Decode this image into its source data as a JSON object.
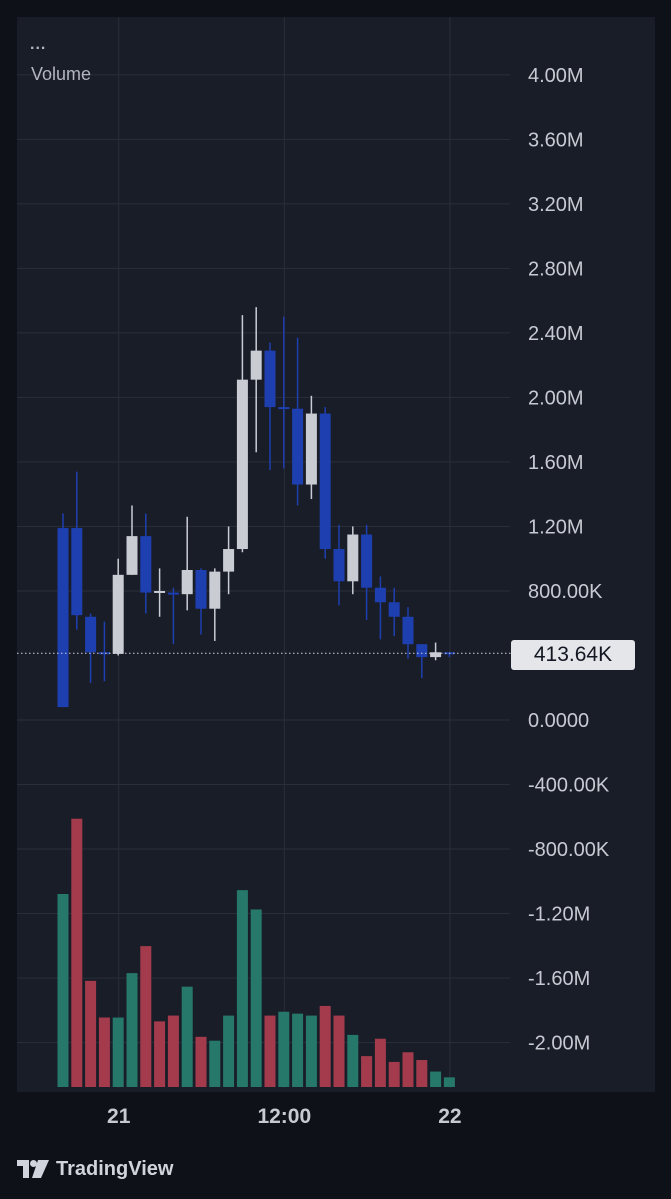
{
  "legend": {
    "menu": "...",
    "title": "Volume"
  },
  "price_label": "413.64K",
  "brand": {
    "name": "TradingView",
    "logo_icon": "tradingview-logo-icon"
  },
  "colors": {
    "up_candle": "#c9ccd3",
    "down_candle": "#1e3fb0",
    "volume_up": "#26786a",
    "volume_down": "#a33b4d",
    "grid": "#2a2e39",
    "background": "#191d28"
  },
  "chart_data": [
    {
      "type": "candlestick",
      "title": "Volume",
      "y_tick_labels": [
        "4.00M",
        "3.60M",
        "3.20M",
        "2.80M",
        "2.40M",
        "2.00M",
        "1.60M",
        "1.20M",
        "800.00K",
        "0.0000",
        "-400.00K",
        "-800.00K",
        "-1.20M",
        "-1.60M",
        "-2.00M"
      ],
      "y_ticks": [
        4000000,
        3600000,
        3200000,
        2800000,
        2400000,
        2000000,
        1600000,
        1200000,
        800000,
        0,
        -400000,
        -800000,
        -1200000,
        -1600000,
        -2000000
      ],
      "ylim": [
        -2280000,
        4190000
      ],
      "x_tick_labels": [
        "21",
        "12:00",
        "22"
      ],
      "x_tick_positions": [
        4,
        16,
        28
      ],
      "last_value": 413640,
      "candles": [
        {
          "o": 1190000,
          "c": 80000,
          "h": 1280000,
          "l": 80000
        },
        {
          "o": 1190000,
          "c": 650000,
          "h": 1540000,
          "l": 560000
        },
        {
          "o": 640000,
          "c": 420000,
          "h": 660000,
          "l": 230000
        },
        {
          "o": 420000,
          "c": 410000,
          "h": 610000,
          "l": 240000
        },
        {
          "o": 410000,
          "c": 900000,
          "h": 1000000,
          "l": 400000
        },
        {
          "o": 900000,
          "c": 1140000,
          "h": 1330000,
          "l": 900000
        },
        {
          "o": 1140000,
          "c": 790000,
          "h": 1280000,
          "l": 660000
        },
        {
          "o": 790000,
          "c": 800000,
          "h": 940000,
          "l": 640000
        },
        {
          "o": 790000,
          "c": 780000,
          "h": 820000,
          "l": 470000
        },
        {
          "o": 780000,
          "c": 930000,
          "h": 1260000,
          "l": 680000
        },
        {
          "o": 930000,
          "c": 690000,
          "h": 940000,
          "l": 530000
        },
        {
          "o": 690000,
          "c": 920000,
          "h": 940000,
          "l": 490000
        },
        {
          "o": 920000,
          "c": 1060000,
          "h": 1200000,
          "l": 780000
        },
        {
          "o": 1060000,
          "c": 2110000,
          "h": 2510000,
          "l": 1040000
        },
        {
          "o": 2110000,
          "c": 2290000,
          "h": 2560000,
          "l": 1660000
        },
        {
          "o": 2290000,
          "c": 1940000,
          "h": 2340000,
          "l": 1550000
        },
        {
          "o": 1940000,
          "c": 1930000,
          "h": 2500000,
          "l": 1560000
        },
        {
          "o": 1930000,
          "c": 1460000,
          "h": 2370000,
          "l": 1330000
        },
        {
          "o": 1460000,
          "c": 1900000,
          "h": 2010000,
          "l": 1370000
        },
        {
          "o": 1900000,
          "c": 1060000,
          "h": 1940000,
          "l": 1000000
        },
        {
          "o": 1060000,
          "c": 860000,
          "h": 1210000,
          "l": 710000
        },
        {
          "o": 860000,
          "c": 1150000,
          "h": 1200000,
          "l": 780000
        },
        {
          "o": 1150000,
          "c": 820000,
          "h": 1210000,
          "l": 620000
        },
        {
          "o": 820000,
          "c": 730000,
          "h": 890000,
          "l": 500000
        },
        {
          "o": 730000,
          "c": 640000,
          "h": 820000,
          "l": 520000
        },
        {
          "o": 640000,
          "c": 470000,
          "h": 700000,
          "l": 380000
        },
        {
          "o": 470000,
          "c": 390000,
          "h": 470000,
          "l": 260000
        },
        {
          "o": 390000,
          "c": 420000,
          "h": 480000,
          "l": 370000
        },
        {
          "o": 420000,
          "c": 410000,
          "h": 420000,
          "l": 390000
        }
      ],
      "volume": [
        {
          "v": 1.0,
          "dir": "up"
        },
        {
          "v": 1.39,
          "dir": "down"
        },
        {
          "v": 0.55,
          "dir": "down"
        },
        {
          "v": 0.36,
          "dir": "down"
        },
        {
          "v": 0.36,
          "dir": "up"
        },
        {
          "v": 0.59,
          "dir": "up"
        },
        {
          "v": 0.73,
          "dir": "down"
        },
        {
          "v": 0.34,
          "dir": "down"
        },
        {
          "v": 0.37,
          "dir": "down"
        },
        {
          "v": 0.52,
          "dir": "up"
        },
        {
          "v": 0.26,
          "dir": "down"
        },
        {
          "v": 0.24,
          "dir": "up"
        },
        {
          "v": 0.37,
          "dir": "up"
        },
        {
          "v": 1.02,
          "dir": "up"
        },
        {
          "v": 0.92,
          "dir": "up"
        },
        {
          "v": 0.37,
          "dir": "down"
        },
        {
          "v": 0.39,
          "dir": "up"
        },
        {
          "v": 0.38,
          "dir": "up"
        },
        {
          "v": 0.37,
          "dir": "up"
        },
        {
          "v": 0.42,
          "dir": "down"
        },
        {
          "v": 0.37,
          "dir": "down"
        },
        {
          "v": 0.27,
          "dir": "up"
        },
        {
          "v": 0.16,
          "dir": "down"
        },
        {
          "v": 0.25,
          "dir": "down"
        },
        {
          "v": 0.13,
          "dir": "down"
        },
        {
          "v": 0.18,
          "dir": "down"
        },
        {
          "v": 0.14,
          "dir": "down"
        },
        {
          "v": 0.08,
          "dir": "up"
        },
        {
          "v": 0.05,
          "dir": "up"
        }
      ]
    }
  ]
}
